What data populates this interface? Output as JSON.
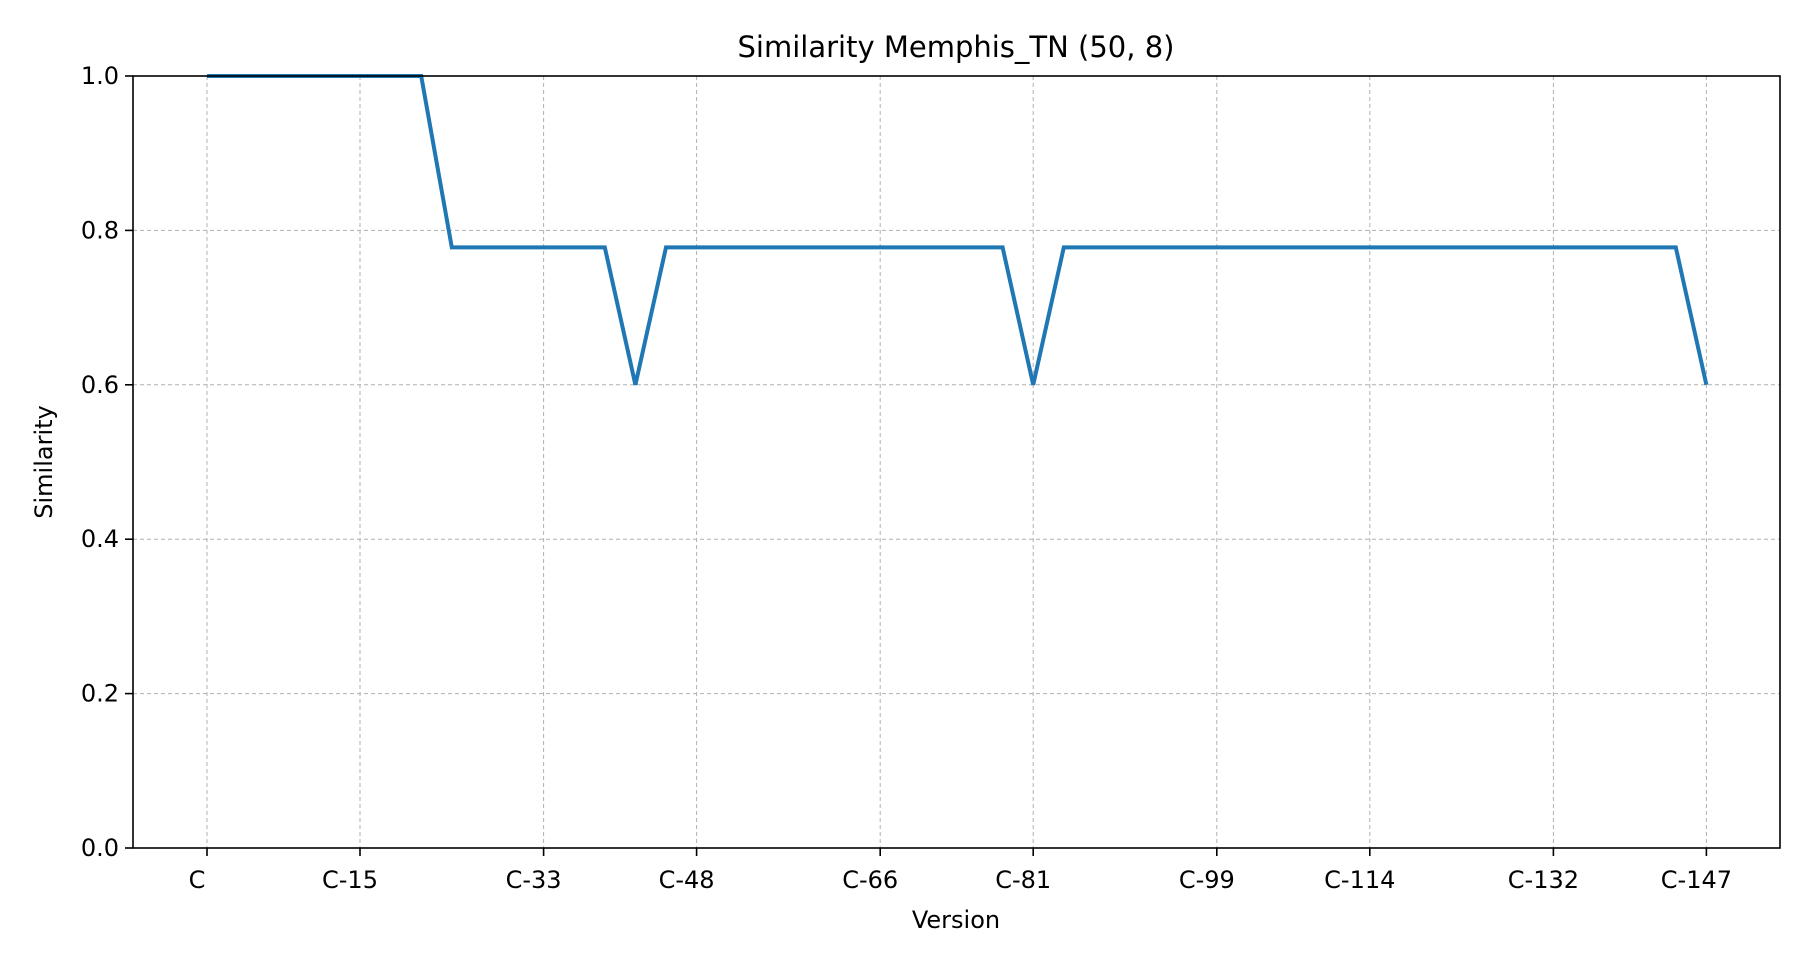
{
  "chart_data": {
    "type": "line",
    "title": "Similarity Memphis_TN (50, 8)",
    "xlabel": "Version",
    "ylabel": "Similarity",
    "ylim": [
      0,
      1.0
    ],
    "yticks": [
      "0.0",
      "0.2",
      "0.4",
      "0.6",
      "0.8",
      "1.0"
    ],
    "xtick_labels": [
      "C",
      "C-15",
      "C-33",
      "C-48",
      "C-66",
      "C-81",
      "C-99",
      "C-114",
      "C-132",
      "C-147"
    ],
    "xtick_indices": [
      0,
      5,
      11,
      16,
      22,
      27,
      33,
      38,
      44,
      49
    ],
    "x_count": 50,
    "grid": true,
    "series": [
      {
        "color": "#1f77b4",
        "values": [
          1.0,
          1.0,
          1.0,
          1.0,
          1.0,
          1.0,
          1.0,
          1.0,
          0.778,
          0.778,
          0.778,
          0.778,
          0.778,
          0.778,
          0.6,
          0.778,
          0.778,
          0.778,
          0.778,
          0.778,
          0.778,
          0.778,
          0.778,
          0.778,
          0.778,
          0.778,
          0.778,
          0.6,
          0.778,
          0.778,
          0.778,
          0.778,
          0.778,
          0.778,
          0.778,
          0.778,
          0.778,
          0.778,
          0.778,
          0.778,
          0.778,
          0.778,
          0.778,
          0.778,
          0.778,
          0.778,
          0.778,
          0.778,
          0.778,
          0.6
        ]
      }
    ]
  }
}
